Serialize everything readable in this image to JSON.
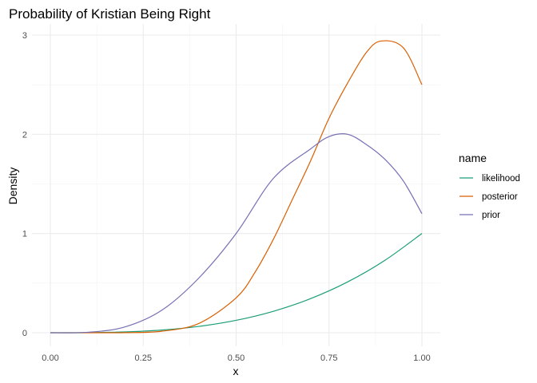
{
  "chart_data": {
    "type": "line",
    "title": "Probability of Kristian Being Right",
    "xlabel": "x",
    "ylabel": "Density",
    "xlim": [
      0,
      1
    ],
    "ylim": [
      0,
      3
    ],
    "x_ticks": [
      0,
      0.25,
      0.5,
      0.75,
      1
    ],
    "x_tick_labels": [
      "0.00",
      "0.25",
      "0.50",
      "0.75",
      "1.00"
    ],
    "y_ticks": [
      0,
      1,
      2,
      3
    ],
    "y_tick_labels": [
      "0",
      "1",
      "2",
      "3"
    ],
    "grid": true,
    "legend": {
      "title": "name",
      "placement": "right",
      "entries": [
        "likelihood",
        "posterior",
        "prior"
      ]
    },
    "colors": {
      "likelihood": "#1b9e77",
      "posterior": "#d95f02",
      "prior": "#7570b3"
    },
    "series": [
      {
        "name": "likelihood",
        "x": [
          0,
          0.1,
          0.2,
          0.3,
          0.4,
          0.5,
          0.6,
          0.7,
          0.8,
          0.9,
          1
        ],
        "y": [
          0,
          0.001,
          0.008,
          0.027,
          0.064,
          0.125,
          0.216,
          0.343,
          0.512,
          0.729,
          1.0
        ]
      },
      {
        "name": "posterior",
        "x": [
          0,
          0.1,
          0.2,
          0.3,
          0.4,
          0.5,
          0.55,
          0.6,
          0.65,
          0.7,
          0.75,
          0.8,
          0.85,
          0.89,
          0.95,
          1
        ],
        "y": [
          0,
          2.25e-05,
          0.001152,
          0.01531,
          0.09437,
          0.3516,
          0.6046,
          0.9406,
          1.3327,
          1.7294,
          2.1624,
          2.5166,
          2.8233,
          2.94,
          2.8718,
          2.5
        ]
      },
      {
        "name": "prior",
        "x": [
          0,
          0.1,
          0.2,
          0.3,
          0.4,
          0.5,
          0.6,
          0.7,
          0.75,
          0.8,
          0.85,
          0.9,
          0.95,
          1
        ],
        "y": [
          0,
          0.0045,
          0.0576,
          0.2268,
          0.553,
          1.0,
          1.5552,
          1.8522,
          1.9775,
          2.0,
          1.8985,
          1.7496,
          1.5296,
          1.2
        ]
      }
    ]
  }
}
